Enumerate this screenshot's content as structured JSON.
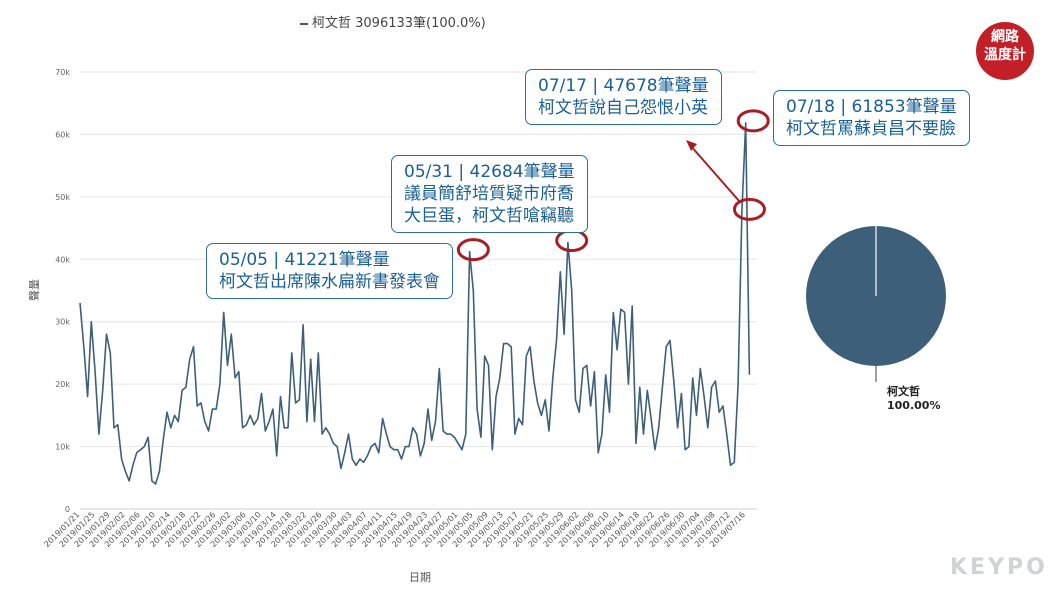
{
  "legend": {
    "text": "柯文哲 3096133筆(100.0%)"
  },
  "logo": {
    "line1": "網路",
    "line2": "溫度計"
  },
  "brand": "KEYPO",
  "colors": {
    "line": "#3d5f7a",
    "pie": "#3d5f7a",
    "highlight": "#a51f24",
    "annotation": "#1a5f96",
    "grid": "#e6e6e6"
  },
  "annotations": [
    {
      "line1": "05/05 | 41221筆聲量",
      "line2": "柯文哲出席陳水扁新書發表會"
    },
    {
      "line1": "05/31 | 42684筆聲量",
      "line2": "議員簡舒培質疑市府喬",
      "line3": "大巨蛋，柯文哲嗆竊聽"
    },
    {
      "line1": "07/17 | 47678筆聲量",
      "line2": "柯文哲說自己怨恨小英"
    },
    {
      "line1": "07/18 | 61853筆聲量",
      "line2": "柯文哲罵蘇貞昌不要臉"
    }
  ],
  "pie": {
    "name": "柯文哲",
    "percent_label": "100.00%",
    "value": 100
  },
  "chart_data": {
    "type": "line",
    "xlabel": "日期",
    "ylabel": "聲量",
    "ylim": [
      0,
      70000
    ],
    "yticks": [
      0,
      10000,
      20000,
      30000,
      40000,
      50000,
      60000,
      70000
    ],
    "ytick_labels": [
      "0",
      "10k",
      "20k",
      "30k",
      "40k",
      "50k",
      "60k",
      "70k"
    ],
    "x_start": "2019-01-21",
    "x_end": "2019-07-19",
    "xtick_labels": [
      "2019/01/21",
      "2019/01/25",
      "2019/01/29",
      "2019/02/02",
      "2019/02/06",
      "2019/02/10",
      "2019/02/14",
      "2019/02/18",
      "2019/02/22",
      "2019/02/26",
      "2019/03/02",
      "2019/03/06",
      "2019/03/10",
      "2019/03/14",
      "2019/03/18",
      "2019/03/22",
      "2019/03/26",
      "2019/03/30",
      "2019/04/03",
      "2019/04/07",
      "2019/04/11",
      "2019/04/15",
      "2019/04/19",
      "2019/04/23",
      "2019/04/27",
      "2019/05/01",
      "2019/05/05",
      "2019/05/09",
      "2019/05/13",
      "2019/05/17",
      "2019/05/21",
      "2019/05/25",
      "2019/05/29",
      "2019/06/02",
      "2019/06/06",
      "2019/06/10",
      "2019/06/14",
      "2019/06/18",
      "2019/06/22",
      "2019/06/26",
      "2019/06/30",
      "2019/07/04",
      "2019/07/08",
      "2019/07/12",
      "2019/07/16"
    ],
    "legend": "top-center",
    "grid": true,
    "series": [
      {
        "name": "柯文哲 3096133筆(100.0%)",
        "values": [
          33000,
          26000,
          18000,
          30000,
          22000,
          12000,
          19000,
          28000,
          25000,
          13000,
          13500,
          8000,
          6000,
          4500,
          7000,
          9000,
          9500,
          10000,
          11500,
          4500,
          4000,
          6000,
          11000,
          15500,
          13000,
          15000,
          14000,
          19000,
          19500,
          24000,
          26000,
          16500,
          17000,
          14000,
          12500,
          16000,
          16000,
          20000,
          31500,
          23000,
          28000,
          21000,
          22000,
          13000,
          13500,
          15000,
          13500,
          14500,
          18500,
          12500,
          14000,
          16000,
          8500,
          18000,
          13000,
          13000,
          25000,
          17000,
          17500,
          29500,
          14000,
          24000,
          14000,
          25000,
          12000,
          13000,
          12000,
          10500,
          10000,
          6500,
          9000,
          12000,
          8000,
          7000,
          8000,
          7500,
          8500,
          10000,
          10500,
          9000,
          14500,
          12000,
          10000,
          9500,
          9500,
          8000,
          10000,
          10000,
          13000,
          12000,
          8500,
          10500,
          16000,
          11000,
          14000,
          22500,
          12500,
          12000,
          12000,
          11500,
          10500,
          9500,
          12000,
          41221,
          35000,
          16000,
          11500,
          24500,
          23000,
          9500,
          18000,
          21000,
          26500,
          26500,
          26000,
          12000,
          14500,
          13500,
          24500,
          26000,
          20500,
          17000,
          15000,
          17500,
          12500,
          21000,
          27000,
          38000,
          28000,
          42684,
          35000,
          17500,
          15500,
          22500,
          23000,
          16500,
          22000,
          9000,
          12000,
          21500,
          15500,
          31500,
          25500,
          32000,
          31500,
          20000,
          32500,
          10500,
          19500,
          12000,
          19000,
          14500,
          9500,
          13000,
          19500,
          26000,
          27000,
          20500,
          13000,
          18500,
          9500,
          10000,
          21000,
          15000,
          22500,
          18000,
          13000,
          19500,
          20500,
          15500,
          16500,
          12000,
          7000,
          7500,
          20000,
          47678,
          61853,
          21500
        ]
      }
    ],
    "highlighted_points": [
      {
        "x": "2019-05-05",
        "y": 41221
      },
      {
        "x": "2019-05-31",
        "y": 42684
      },
      {
        "x": "2019-07-17",
        "y": 47678
      },
      {
        "x": "2019-07-18",
        "y": 61853
      }
    ]
  }
}
